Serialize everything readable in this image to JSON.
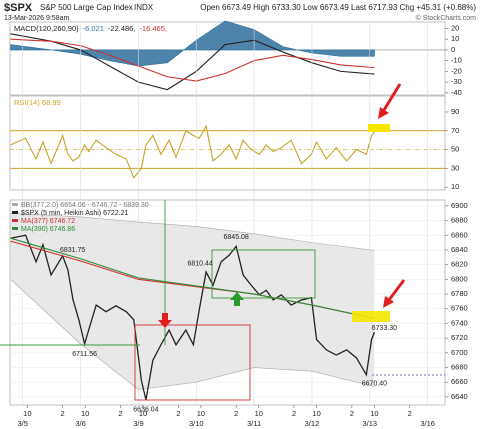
{
  "header": {
    "symbol": "$SPX",
    "name": "S&P 500 Large Cap Index",
    "exchange": "INDX",
    "datetime": "13-Mar-2026 9:58am",
    "quote": "Open 6673.49 High 6733.30 Low 6673.49 Last 6717.93 Chg +45.31 (+0.68%)",
    "credit": "© StockCharts.com"
  },
  "chart_data": [
    {
      "type": "line",
      "legend": "inline",
      "xlim": [
        -0.22,
        7.3
      ],
      "ylim": [
        -42,
        26
      ],
      "yticks": [
        20,
        10,
        0,
        -10,
        -20,
        -30,
        -40
      ],
      "ref_lines": [
        0
      ],
      "series": [
        {
          "name": "MACD(120,260,90)",
          "style": "label"
        },
        {
          "name": "-6.021",
          "color": "#2e6f9c",
          "style": "area",
          "x": [
            -0.21,
            0.5,
            1,
            1.5,
            2,
            2.5,
            3,
            3.5,
            4,
            4.5,
            5,
            5.5,
            6.08
          ],
          "values": [
            5,
            0,
            -4,
            -10,
            -15,
            -12,
            9,
            27,
            19,
            3,
            -3,
            -6,
            -6
          ]
        },
        {
          "name": "-22.486,",
          "color": "#222222",
          "x": [
            -0.21,
            0.5,
            1,
            1.5,
            2,
            2.5,
            3,
            3.5,
            4,
            4.5,
            5,
            5.5,
            6.08
          ],
          "values": [
            15,
            8,
            0,
            -15,
            -30,
            -37,
            -20,
            5,
            9,
            -2,
            -12,
            -20,
            -22.5
          ]
        },
        {
          "name": "-16.465,",
          "color": "#d03030",
          "x": [
            -0.21,
            0.5,
            1,
            1.5,
            2,
            2.5,
            3,
            3.5,
            4,
            4.5,
            5,
            5.5,
            6.08
          ],
          "values": [
            10,
            8,
            4,
            -5,
            -15,
            -25,
            -29,
            -22,
            -10,
            -5,
            -9,
            -14,
            -16.5
          ]
        }
      ]
    },
    {
      "type": "line",
      "legend": "inline",
      "xlim": [
        -0.22,
        7.3
      ],
      "ylim": [
        7,
        107
      ],
      "yticks": [
        90,
        70,
        50,
        30,
        10
      ],
      "ref_lines": [
        70,
        50,
        30
      ],
      "series": [
        {
          "name": "RSI(14) 68.99",
          "color": "#c9a227",
          "x": [
            -0.21,
            0.05,
            0.23,
            0.35,
            0.49,
            0.69,
            0.78,
            0.87,
            0.97,
            1.07,
            1.14,
            1.27,
            1.44,
            1.61,
            1.79,
            1.92,
            2.05,
            2.13,
            2.25,
            2.39,
            2.53,
            2.65,
            2.82,
            2.95,
            3.05,
            3.17,
            3.29,
            3.43,
            3.57,
            3.69,
            3.81,
            3.95,
            4.09,
            4.21,
            4.33,
            4.47,
            4.64,
            4.82,
            4.99,
            5.08,
            5.25,
            5.42,
            5.6,
            5.77,
            5.94,
            6.03,
            6.08
          ],
          "values": [
            55,
            62,
            40,
            58,
            35,
            65,
            45,
            38,
            42,
            55,
            48,
            60,
            52,
            45,
            40,
            20,
            30,
            55,
            65,
            45,
            60,
            42,
            70,
            65,
            62,
            75,
            38,
            45,
            55,
            40,
            60,
            50,
            45,
            55,
            48,
            52,
            60,
            35,
            45,
            58,
            40,
            52,
            38,
            50,
            45,
            65,
            69
          ]
        }
      ]
    },
    {
      "type": "line",
      "legend": "stacked",
      "grid": true,
      "xlim": [
        -0.22,
        7.3
      ],
      "ylim": [
        6629,
        6908
      ],
      "yticks": [
        6900,
        6880,
        6860,
        6840,
        6820,
        6800,
        6780,
        6760,
        6740,
        6720,
        6700,
        6680,
        6660,
        6640
      ],
      "xticks": [
        {
          "value": 0.08,
          "label": "10"
        },
        {
          "value": 0.69,
          "label": "2"
        },
        {
          "value": 1.08,
          "label": "10"
        },
        {
          "value": 1.69,
          "label": "2"
        },
        {
          "value": 2.08,
          "label": "10"
        },
        {
          "value": 2.69,
          "label": "2"
        },
        {
          "value": 3.08,
          "label": "10"
        },
        {
          "value": 3.69,
          "label": "2"
        },
        {
          "value": 4.08,
          "label": "10"
        },
        {
          "value": 4.69,
          "label": "2"
        },
        {
          "value": 5.08,
          "label": "10"
        },
        {
          "value": 5.69,
          "label": "2"
        },
        {
          "value": 6.08,
          "label": "10"
        },
        {
          "value": 6.69,
          "label": "2"
        }
      ],
      "xdate_ticks": [
        {
          "value": 0,
          "label": "3/5"
        },
        {
          "value": 1,
          "label": "3/6"
        },
        {
          "value": 2,
          "label": "3/9"
        },
        {
          "value": 3,
          "label": "3/10"
        },
        {
          "value": 4,
          "label": "3/11"
        },
        {
          "value": 5,
          "label": "3/12"
        },
        {
          "value": 6,
          "label": "3/13"
        },
        {
          "value": 7,
          "label": "3/16"
        }
      ],
      "series": [
        {
          "name": "BB(377,2.0) 6654.06 - 6746.72 - 6839.30",
          "color": "#aaaaaa",
          "style": "band",
          "x": [
            -0.21,
            1,
            2,
            3,
            4,
            5,
            6.08
          ],
          "values": [
            6890,
            6885,
            6878,
            6872,
            6862,
            6850,
            6839.3
          ],
          "lower": [
            6800,
            6712,
            6650,
            6660,
            6680,
            6675,
            6654.06
          ]
        },
        {
          "name": "$SPX (5 min, Heikin Ashi) 6722.21",
          "color": "#222222",
          "x": [
            -0.21,
            0.05,
            0.23,
            0.35,
            0.49,
            0.69,
            0.78,
            0.87,
            0.97,
            1.07,
            1.14,
            1.27,
            1.44,
            1.61,
            1.79,
            1.92,
            2.05,
            2.13,
            2.25,
            2.39,
            2.53,
            2.65,
            2.82,
            2.95,
            3.05,
            3.17,
            3.29,
            3.43,
            3.57,
            3.69,
            3.81,
            3.95,
            4.09,
            4.21,
            4.33,
            4.47,
            4.64,
            4.82,
            4.99,
            5.08,
            5.25,
            5.42,
            5.6,
            5.77,
            5.94,
            6.03,
            6.08
          ],
          "values": [
            6856,
            6860,
            6824,
            6847,
            6806,
            6832,
            6813,
            6772,
            6745,
            6712,
            6731,
            6765,
            6756,
            6764,
            6756,
            6745,
            6663,
            6636,
            6690,
            6711,
            6731,
            6711,
            6731,
            6711,
            6758,
            6810,
            6792,
            6824,
            6833,
            6845,
            6806,
            6792,
            6779,
            6785,
            6772,
            6779,
            6765,
            6772,
            6775,
            6718,
            6704,
            6697,
            6704,
            6693,
            6670,
            6718,
            6728
          ]
        },
        {
          "name": "MA(377) 6746.72",
          "color": "#d03030",
          "x": [
            -0.21,
            1,
            2,
            3,
            4,
            5,
            6.08
          ],
          "values": [
            6852,
            6825,
            6800,
            6790,
            6780,
            6765,
            6746.72
          ]
        },
        {
          "name": "MA(390) 6746.86",
          "color": "#2e8b3a",
          "x": [
            -0.21,
            1,
            2,
            3,
            4,
            5,
            6.08
          ],
          "values": [
            6856,
            6828,
            6802,
            6791,
            6780,
            6765,
            6746.86
          ]
        }
      ],
      "annotations": [
        {
          "x": 0.69,
          "value": 6831.75,
          "label": "6831.75"
        },
        {
          "x": 1.07,
          "value": 6711.56,
          "label": "6711.56"
        },
        {
          "x": 2.13,
          "value": 6636.04,
          "label": "6636.04"
        },
        {
          "x": 3.17,
          "value": 6810.44,
          "label": "6810.44"
        },
        {
          "x": 3.69,
          "value": 6845.08,
          "label": "6845.08"
        },
        {
          "x": 6.08,
          "value": 6733.3,
          "label": "6733.30"
        },
        {
          "x": 6.08,
          "value": 6670.4,
          "label": "6670.40"
        }
      ]
    }
  ]
}
